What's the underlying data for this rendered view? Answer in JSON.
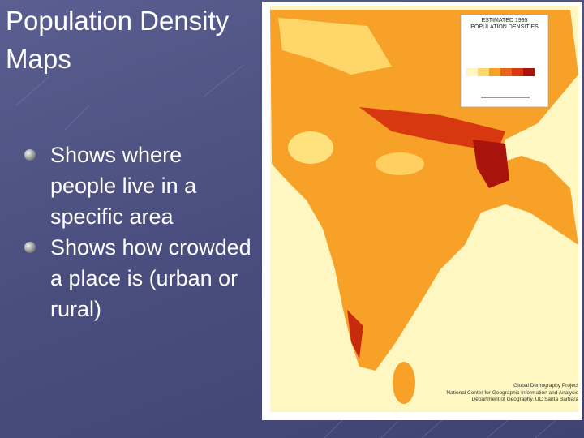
{
  "slide": {
    "title": "Population Density Maps",
    "bullets": [
      "Shows where people live in a specific area",
      "Shows how crowded a place is (urban or rural)"
    ],
    "map": {
      "legend_title": "ESTIMATED 1995 POPULATION DENSITIES",
      "credits": [
        "Global Demography Project",
        "National Center for Geographic Information and Analysis",
        "Department of Geography, UC Santa Barbara"
      ]
    }
  }
}
